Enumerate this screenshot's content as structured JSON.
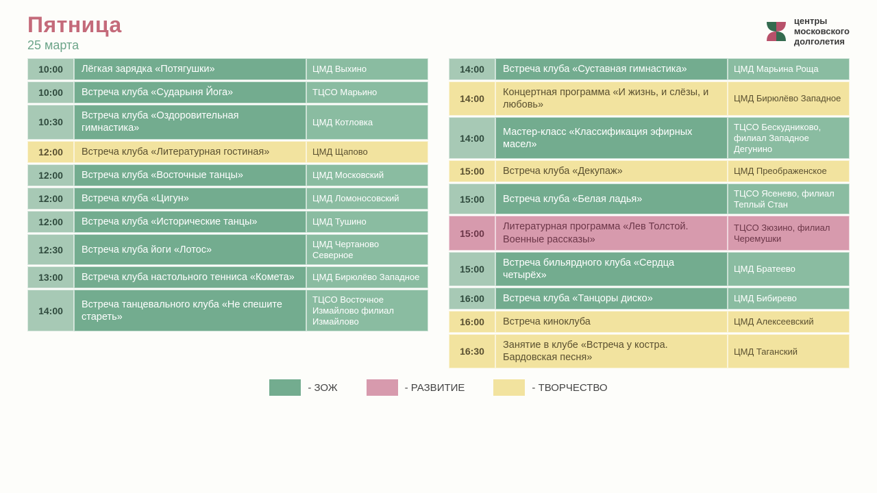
{
  "header": {
    "title": "Пятница",
    "subtitle": "25 марта",
    "logo_line1": "центры",
    "logo_line2": "московского",
    "logo_line3": "долголетия"
  },
  "colors": {
    "green": "#73ac8f",
    "green_light": "#8abca1",
    "yellow": "#f2e39f",
    "pink": "#d79aad",
    "title": "#c46a7a",
    "subtitle": "#6da58a"
  },
  "legend": {
    "green_label": "- ЗОЖ",
    "pink_label": "- РАЗВИТИЕ",
    "yellow_label": "- ТВОРЧЕСТВО"
  },
  "left": [
    {
      "time": "10:00",
      "event": "Лёгкая зарядка «Потягушки»",
      "place": "ЦМД Выхино",
      "cat": "green"
    },
    {
      "time": "10:00",
      "event": "Встреча клуба «Сударыня Йога»",
      "place": "ТЦСО Марьино",
      "cat": "green"
    },
    {
      "time": "10:30",
      "event": "Встреча клуба «Оздоровительная гимнастика»",
      "place": "ЦМД Котловка",
      "cat": "green"
    },
    {
      "time": "12:00",
      "event": "Встреча клуба «Литературная гостиная»",
      "place": "ЦМД Щапово",
      "cat": "yellow"
    },
    {
      "time": "12:00",
      "event": "Встреча клуба «Восточные танцы»",
      "place": "ЦМД Московский",
      "cat": "green"
    },
    {
      "time": "12:00",
      "event": "Встреча клуба «Цигун»",
      "place": "ЦМД Ломоносовский",
      "cat": "green"
    },
    {
      "time": "12:00",
      "event": "Встреча клуба «Исторические танцы»",
      "place": "ЦМД Тушино",
      "cat": "green"
    },
    {
      "time": "12:30",
      "event": "Встреча клуба йоги «Лотос»",
      "place": "ЦМД Чертаново Северное",
      "cat": "green"
    },
    {
      "time": "13:00",
      "event": "Встреча клуба настольного тенниса «Комета»",
      "place": "ЦМД Бирюлёво Западное",
      "cat": "green"
    },
    {
      "time": "14:00",
      "event": "Встреча танцевального клуба «Не спешите стареть»",
      "place": "ТЦСО Восточное Измайлово филиал Измайлово",
      "cat": "green"
    }
  ],
  "right": [
    {
      "time": "14:00",
      "event": "Встреча клуба «Суставная гимнастика»",
      "place": "ЦМД Марьина Роща",
      "cat": "green"
    },
    {
      "time": "14:00",
      "event": "Концертная программа «И жизнь, и слёзы, и любовь»",
      "place": "ЦМД Бирюлёво Западное",
      "cat": "yellow"
    },
    {
      "time": "14:00",
      "event": "Мастер-класс «Классификация эфирных масел»",
      "place": "ТЦСО Бескудниково, филиал Западное Дегунино",
      "cat": "green"
    },
    {
      "time": "15:00",
      "event": "Встреча клуба «Декупаж»",
      "place": "ЦМД Преображенское",
      "cat": "yellow"
    },
    {
      "time": "15:00",
      "event": "Встреча клуба «Белая ладья»",
      "place": "ТЦСО Ясенево, филиал Теплый Стан",
      "cat": "green"
    },
    {
      "time": "15:00",
      "event": "Литературная программа «Лев Толстой. Военные рассказы»",
      "place": "ТЦСО Зюзино, филиал Черемушки",
      "cat": "pink"
    },
    {
      "time": "15:00",
      "event": "Встреча бильярдного клуба «Сердца четырёх»",
      "place": "ЦМД Братеево",
      "cat": "green"
    },
    {
      "time": "16:00",
      "event": "Встреча клуба «Танцоры диско»",
      "place": "ЦМД Бибирево",
      "cat": "green"
    },
    {
      "time": "16:00",
      "event": "Встреча киноклуба",
      "place": "ЦМД Алексеевский",
      "cat": "yellow"
    },
    {
      "time": "16:30",
      "event": "Занятие в клубе «Встреча у костра. Бардовская песня»",
      "place": "ЦМД Таганский",
      "cat": "yellow"
    }
  ]
}
